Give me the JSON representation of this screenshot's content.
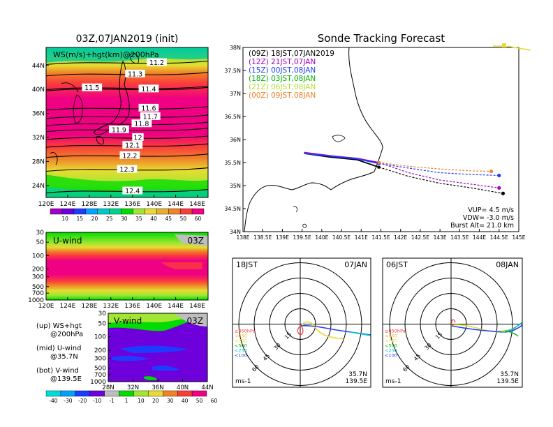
{
  "map_title": "03Z,07JAN2019 (init)",
  "map_label": "WS(m/s)+hgt(km)@200hPa",
  "track_title": "Sonde Tracking Forecast",
  "uwind_label": "U-wind",
  "uwind_time": "03Z",
  "vwind_label": "V-wind",
  "vwind_time": "03Z",
  "notes": [
    {
      "line1": "(up) WS+hgt",
      "line2": "@200hPa"
    },
    {
      "line1": "(mid) U-wind",
      "line2": "@35.7N"
    },
    {
      "line1": "(bot) V-wind",
      "line2": "@139.5E"
    }
  ],
  "colors": {
    "ws": [
      "#a000c8",
      "#6e00dc",
      "#1e3cff",
      "#00a0ff",
      "#00c8c8",
      "#00d28c",
      "#00dc00",
      "#a0e632",
      "#e6dc32",
      "#e6af2d",
      "#f08228",
      "#fa3c3c",
      "#f00082"
    ]
  },
  "chart_data": [
    {
      "id": "ws_map",
      "type": "heatmap",
      "title": "03Z,07JAN2019 (init)",
      "subtitle": "WS(m/s)+hgt(km)@200hPa",
      "x_ticks": [
        "120E",
        "124E",
        "128E",
        "132E",
        "136E",
        "140E",
        "144E",
        "148E"
      ],
      "y_ticks": [
        "24N",
        "28N",
        "32N",
        "36N",
        "40N",
        "44N"
      ],
      "xlim": [
        120,
        150
      ],
      "ylim": [
        22,
        47
      ],
      "colorbar_ticks": [
        "10",
        "15",
        "20",
        "25",
        "30",
        "35",
        "40",
        "45",
        "50",
        "60"
      ],
      "contour_labels": [
        {
          "text": "11.2",
          "lon": 140.5,
          "lat": 44.5
        },
        {
          "text": "11.3",
          "lon": 136.5,
          "lat": 42.6
        },
        {
          "text": "11.5",
          "lon": 128.5,
          "lat": 40.3
        },
        {
          "text": "11.4",
          "lon": 139.0,
          "lat": 40.1
        },
        {
          "text": "11.6",
          "lon": 139.0,
          "lat": 36.9
        },
        {
          "text": "11.7",
          "lon": 139.3,
          "lat": 35.5
        },
        {
          "text": "11.8",
          "lon": 137.7,
          "lat": 34.3
        },
        {
          "text": "11.9",
          "lon": 133.5,
          "lat": 33.3
        },
        {
          "text": "12",
          "lon": 137.0,
          "lat": 32.0
        },
        {
          "text": "12.1",
          "lon": 136.0,
          "lat": 30.7
        },
        {
          "text": "12.2",
          "lon": 135.5,
          "lat": 29.0
        },
        {
          "text": "12.3",
          "lon": 135.0,
          "lat": 26.7
        },
        {
          "text": "12.4",
          "lon": 136.0,
          "lat": 23.1
        }
      ]
    },
    {
      "id": "uwind",
      "type": "heatmap",
      "title": "U-wind",
      "x_ticks": [
        "120E",
        "124E",
        "128E",
        "132E",
        "136E",
        "140E",
        "144E",
        "148E"
      ],
      "y_ticks": [
        "30",
        "50",
        "100",
        "200",
        "300",
        "500",
        "700",
        "1000"
      ],
      "xlim": [
        120,
        150
      ],
      "ylim": [
        1000,
        30
      ],
      "y_scale": "log"
    },
    {
      "id": "vwind",
      "type": "heatmap",
      "title": "V-wind",
      "x_ticks": [
        "28N",
        "32N",
        "36N",
        "40N",
        "44N"
      ],
      "y_ticks": [
        "30",
        "50",
        "100",
        "200",
        "300",
        "500",
        "700",
        "1000"
      ],
      "xlim": [
        28,
        44
      ],
      "ylim": [
        1000,
        30
      ],
      "y_scale": "log",
      "colorbar_ticks": [
        "-40",
        "-30",
        "-20",
        "-10",
        "-1",
        "1",
        "10",
        "20",
        "30",
        "40",
        "50",
        "60"
      ]
    },
    {
      "id": "track",
      "type": "line",
      "title": "Sonde Tracking Forecast",
      "x_ticks": [
        "138E",
        "138.5E",
        "139E",
        "139.5E",
        "140E",
        "140.5E",
        "141E",
        "141.5E",
        "142E",
        "142.5E",
        "143E",
        "143.5E",
        "144E",
        "144.5E",
        "145E"
      ],
      "y_ticks": [
        "34N",
        "34.5N",
        "35N",
        "35.5N",
        "36N",
        "36.5N",
        "37N",
        "37.5N",
        "38N"
      ],
      "xlim": [
        138,
        145
      ],
      "ylim": [
        34,
        38
      ],
      "legend": [
        {
          "label": "(09Z)  18JST,07JAN2019",
          "color": "#000000"
        },
        {
          "label": "(12Z)  21JST,07JAN",
          "color": "#a000c8"
        },
        {
          "label": "(15Z)  00JST,08JAN",
          "color": "#1e3cff"
        },
        {
          "label": "(18Z)  03JST,08JAN",
          "color": "#00b400"
        },
        {
          "label": "(21Z)  06JST,08JAN",
          "color": "#b4dc32"
        },
        {
          "label": "(00Z)  09JST,08JAN",
          "color": "#f08228"
        }
      ],
      "info": [
        "VUP= 4.5 m/s",
        "VDW= -3.0 m/s",
        "Burst Alt= 21.0 km"
      ],
      "series": [
        {
          "name": "(09Z)  18JST,07JAN2019",
          "color": "#000000",
          "x": [
            139.55,
            140.2,
            140.9,
            141.45,
            142.2,
            143.0,
            143.8,
            144.6
          ],
          "y": [
            35.7,
            35.62,
            35.56,
            35.4,
            35.2,
            35.05,
            34.95,
            34.83
          ]
        },
        {
          "name": "(12Z)  21JST,07JAN",
          "color": "#a000c8",
          "x": [
            139.55,
            140.2,
            140.9,
            141.45,
            142.2,
            143.0,
            143.8,
            144.5
          ],
          "y": [
            35.72,
            35.65,
            35.59,
            35.5,
            35.28,
            35.12,
            35.03,
            34.95
          ]
        },
        {
          "name": "(15Z)  00JST,08JAN",
          "color": "#1e3cff",
          "x": [
            139.55,
            140.2,
            140.9,
            141.45,
            142.2,
            143.0,
            143.8,
            144.5
          ],
          "y": [
            35.7,
            35.64,
            35.58,
            35.48,
            35.38,
            35.28,
            35.24,
            35.22
          ]
        },
        {
          "name": "(00Z)  09JST,08JAN",
          "color": "#f08228",
          "x": [
            141.45,
            142.2,
            143.0,
            143.8,
            144.3
          ],
          "y": [
            35.5,
            35.42,
            35.36,
            35.32,
            35.31
          ]
        }
      ]
    },
    {
      "id": "hodo_left",
      "type": "line",
      "time_left": "18JST",
      "time_right": "07JAN",
      "units": "ms-1",
      "location": [
        "35.7N",
        "139.5E"
      ],
      "ring_labels": [
        "15",
        "30",
        "45",
        "60"
      ],
      "levels": [
        {
          "label": "≥850hPa",
          "color": "#fa3c3c"
        },
        {
          "label": "<850",
          "color": "#f0b428"
        },
        {
          "label": "<700",
          "color": "#e6dc32"
        },
        {
          "label": "<500",
          "color": "#00b400"
        },
        {
          "label": "<250",
          "color": "#00c8c8"
        },
        {
          "label": "<100",
          "color": "#1e3cff"
        }
      ]
    },
    {
      "id": "hodo_right",
      "type": "line",
      "time_left": "06JST",
      "time_right": "08JAN",
      "units": "ms-1",
      "location": [
        "35.7N",
        "139.5E"
      ],
      "ring_labels": [
        "15",
        "30",
        "45",
        "60"
      ],
      "levels": [
        {
          "label": "≥850hPa",
          "color": "#fa3c3c"
        },
        {
          "label": "<850",
          "color": "#f0b428"
        },
        {
          "label": "<700",
          "color": "#e6dc32"
        },
        {
          "label": "<500",
          "color": "#00b400"
        },
        {
          "label": "<250",
          "color": "#00c8c8"
        },
        {
          "label": "<100",
          "color": "#1e3cff"
        }
      ]
    }
  ]
}
